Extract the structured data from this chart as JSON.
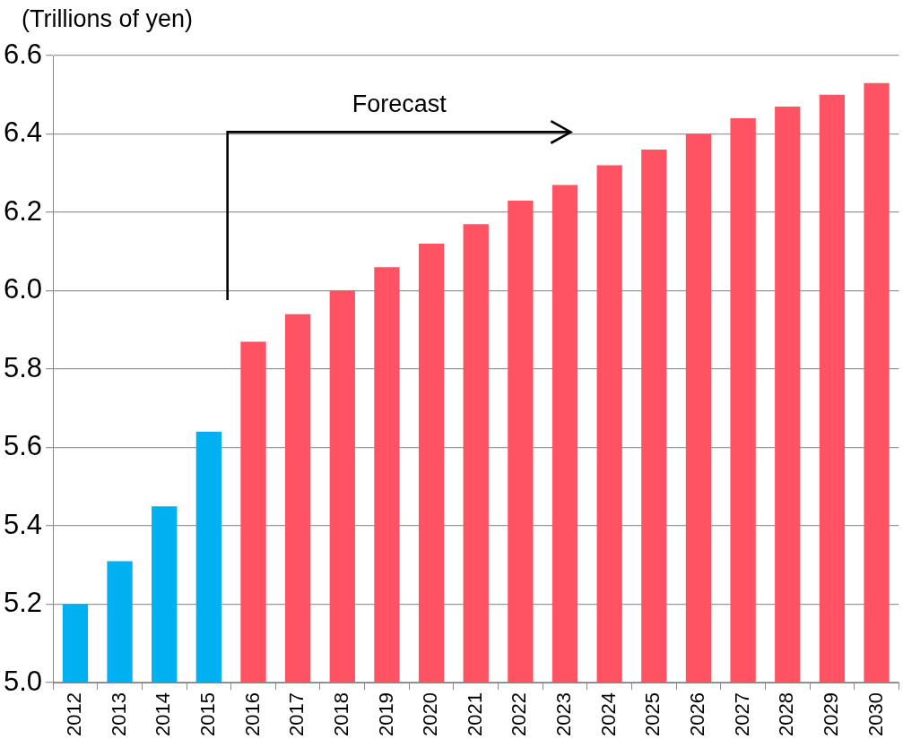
{
  "chart_data": {
    "type": "bar",
    "ylabel": "(Trillions of yen)",
    "annotations": [
      "Forecast"
    ],
    "categories": [
      "2012",
      "2013",
      "2014",
      "2015",
      "2016",
      "2017",
      "2018",
      "2019",
      "2020",
      "2021",
      "2022",
      "2023",
      "2024",
      "2025",
      "2026",
      "2027",
      "2028",
      "2029",
      "2030"
    ],
    "values": [
      5.2,
      5.31,
      5.45,
      5.64,
      5.87,
      5.94,
      6.0,
      6.06,
      6.12,
      6.17,
      6.23,
      6.27,
      6.32,
      6.36,
      6.4,
      6.44,
      6.47,
      6.5,
      6.53
    ],
    "colors": [
      "#00b0f0",
      "#00b0f0",
      "#00b0f0",
      "#00b0f0",
      "#ff5364",
      "#ff5364",
      "#ff5364",
      "#ff5364",
      "#ff5364",
      "#ff5364",
      "#ff5364",
      "#ff5364",
      "#ff5364",
      "#ff5364",
      "#ff5364",
      "#ff5364",
      "#ff5364",
      "#ff5364",
      "#ff5364"
    ],
    "ylim": [
      5.0,
      6.6
    ],
    "yticks": [
      {
        "value": 5.0,
        "label": "5.0"
      },
      {
        "value": 5.2,
        "label": "5.2"
      },
      {
        "value": 5.4,
        "label": "5.4"
      },
      {
        "value": 5.6,
        "label": "5.6"
      },
      {
        "value": 5.8,
        "label": "5.8"
      },
      {
        "value": 6.0,
        "label": "6.0"
      },
      {
        "value": 6.2,
        "label": "6.2"
      },
      {
        "value": 6.4,
        "label": "6.4"
      },
      {
        "value": 6.6,
        "label": "6.6"
      }
    ],
    "grid": "y",
    "legend": false
  }
}
